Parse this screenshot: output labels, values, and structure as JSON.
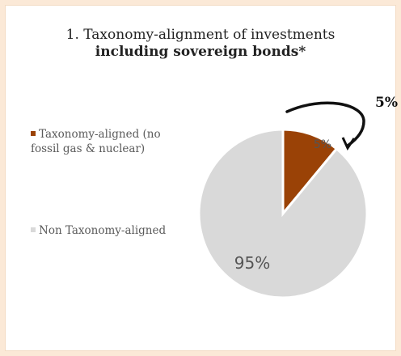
{
  "title": {
    "line1": "1. Taxonomy-alignment of investments",
    "line2": "including sovereign bonds*"
  },
  "colors": {
    "page_bg": "#fbe9d7",
    "panel_bg": "#ffffff",
    "aligned": "#9a4206",
    "non_aligned": "#d9d9d9"
  },
  "chart_data": {
    "type": "pie",
    "title": "1. Taxonomy-alignment of investments including sovereign bonds*",
    "slices": [
      {
        "name": "Taxonomy-aligned (no fossil gas & nuclear)",
        "value": 5,
        "label": "5%",
        "color": "#9a4206"
      },
      {
        "name": "Non Taxonomy-aligned",
        "value": 95,
        "label": "95%",
        "color": "#d9d9d9"
      }
    ],
    "legend_position": "left",
    "annotation": {
      "text": "5%",
      "style": "bold callout with curved arrow"
    }
  }
}
